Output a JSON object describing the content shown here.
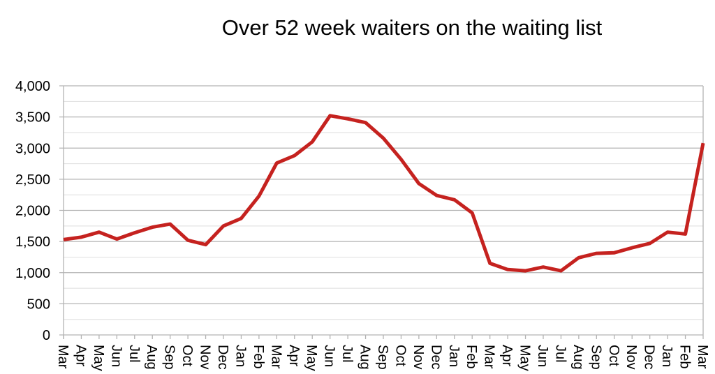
{
  "chart_data": {
    "type": "line",
    "title": "Over 52 week waiters on the waiting list",
    "xlabel": "",
    "ylabel": "",
    "ylim": [
      0,
      4000
    ],
    "yticks": [
      "0",
      "500",
      "1,000",
      "1,500",
      "2,000",
      "2,500",
      "3,000",
      "3,500",
      "4,000"
    ],
    "ytick_values": [
      0,
      500,
      1000,
      1500,
      2000,
      2500,
      3000,
      3500,
      4000
    ],
    "grid": true,
    "legend": "none",
    "line_color": "#c5221f",
    "categories": [
      "Mar",
      "Apr",
      "May",
      "Jun",
      "Jul",
      "Aug",
      "Sep",
      "Oct",
      "Nov",
      "Dec",
      "Jan",
      "Feb",
      "Mar",
      "Apr",
      "May",
      "Jun",
      "Jul",
      "Aug",
      "Sep",
      "Oct",
      "Nov",
      "Dec",
      "Jan",
      "Feb",
      "Mar",
      "Apr",
      "May",
      "Jun",
      "Jul",
      "Aug",
      "Sep",
      "Oct",
      "Nov",
      "Dec",
      "Jan",
      "Feb",
      "Mar"
    ],
    "series": [
      {
        "values": [
          1530,
          1570,
          1650,
          1540,
          1640,
          1730,
          1780,
          1520,
          1450,
          1750,
          1870,
          2230,
          2760,
          2880,
          3100,
          3520,
          3470,
          3410,
          3160,
          2820,
          2430,
          2240,
          2170,
          1960,
          1150,
          1050,
          1030,
          1090,
          1030,
          1240,
          1310,
          1320,
          1400,
          1470,
          1650,
          1620,
          3080
        ]
      }
    ]
  }
}
